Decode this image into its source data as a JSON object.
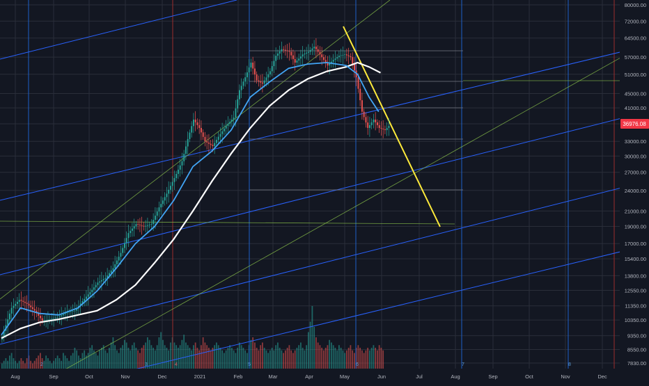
{
  "chart_data": {
    "type": "candlestick",
    "title": "",
    "y_scale": "log",
    "ylim": [
      7600,
      84000
    ],
    "y_ticks": [
      "80000.00",
      "72000.00",
      "64500.00",
      "57000.00",
      "51000.00",
      "45000.00",
      "41000.00",
      "36976.08",
      "33000.00",
      "30000.00",
      "27000.00",
      "24000.00",
      "21000.00",
      "19000.00",
      "17000.00",
      "15400.00",
      "13800.00",
      "12550.00",
      "11350.00",
      "10350.00",
      "9350.00",
      "8550.00",
      "7830.00"
    ],
    "x_ticks": [
      "Aug",
      "Sep",
      "Oct",
      "Nov",
      "Dec",
      "2021",
      "Feb",
      "Mar",
      "Apr",
      "May",
      "Jun",
      "Jul",
      "Aug",
      "Sep",
      "Oct",
      "Nov",
      "Dec"
    ],
    "current_price": "36976.08",
    "week_markers": [
      "2",
      "3",
      "4",
      "5",
      "6",
      "7",
      "8"
    ],
    "colors": {
      "background": "#131722",
      "up": "#26a69a",
      "down": "#ef5350",
      "grid": "#2a2e39",
      "ma_fast": "#42a5f5",
      "ma_slow": "#ffffff",
      "trend": "#ffeb3b",
      "channel": "#2962ff",
      "fib": "#8bc34a",
      "level": "#787b86",
      "month_line": "#1e5fc8",
      "year_line": "#9b2c2c"
    },
    "price_path": [
      [
        0,
        9300
      ],
      [
        5,
        11200
      ],
      [
        9,
        11800
      ],
      [
        13,
        11500
      ],
      [
        17,
        11000
      ],
      [
        21,
        10300
      ],
      [
        25,
        10400
      ],
      [
        30,
        10600
      ],
      [
        34,
        10900
      ],
      [
        38,
        11000
      ],
      [
        42,
        11700
      ],
      [
        46,
        12400
      ],
      [
        50,
        13200
      ],
      [
        54,
        13600
      ],
      [
        58,
        14500
      ],
      [
        62,
        16000
      ],
      [
        66,
        18200
      ],
      [
        70,
        19300
      ],
      [
        74,
        19000
      ],
      [
        78,
        19300
      ],
      [
        82,
        21500
      ],
      [
        86,
        23500
      ],
      [
        90,
        26000
      ],
      [
        94,
        29000
      ],
      [
        97,
        33500
      ],
      [
        100,
        38000
      ],
      [
        103,
        36000
      ],
      [
        106,
        33000
      ],
      [
        110,
        32000
      ],
      [
        113,
        34000
      ],
      [
        117,
        36500
      ],
      [
        121,
        38500
      ],
      [
        124,
        46000
      ],
      [
        127,
        50000
      ],
      [
        130,
        55000
      ],
      [
        133,
        49000
      ],
      [
        136,
        48000
      ],
      [
        140,
        52000
      ],
      [
        143,
        57500
      ],
      [
        146,
        60000
      ],
      [
        150,
        59000
      ],
      [
        153,
        55000
      ],
      [
        157,
        58000
      ],
      [
        160,
        59000
      ],
      [
        163,
        61000
      ],
      [
        166,
        58000
      ],
      [
        170,
        54000
      ],
      [
        173,
        56000
      ],
      [
        176,
        57500
      ],
      [
        179,
        58000
      ],
      [
        182,
        57000
      ],
      [
        185,
        50000
      ],
      [
        188,
        40000
      ],
      [
        191,
        36000
      ],
      [
        194,
        38000
      ],
      [
        197,
        36000
      ],
      [
        200,
        35500
      ],
      [
        203,
        36976
      ]
    ],
    "ma_fast_path": [
      [
        0,
        9400
      ],
      [
        10,
        11200
      ],
      [
        20,
        10800
      ],
      [
        30,
        10700
      ],
      [
        40,
        11200
      ],
      [
        50,
        12500
      ],
      [
        60,
        14500
      ],
      [
        70,
        17000
      ],
      [
        80,
        19000
      ],
      [
        90,
        22500
      ],
      [
        100,
        28000
      ],
      [
        110,
        31000
      ],
      [
        120,
        35500
      ],
      [
        130,
        44000
      ],
      [
        140,
        48500
      ],
      [
        150,
        53000
      ],
      [
        160,
        54500
      ],
      [
        170,
        55000
      ],
      [
        180,
        54000
      ],
      [
        186,
        51000
      ],
      [
        192,
        44000
      ],
      [
        197,
        40000
      ]
    ],
    "ma_slow_path": [
      [
        0,
        9200
      ],
      [
        10,
        9800
      ],
      [
        20,
        10200
      ],
      [
        30,
        10400
      ],
      [
        40,
        10700
      ],
      [
        50,
        11000
      ],
      [
        60,
        11800
      ],
      [
        70,
        13000
      ],
      [
        80,
        15000
      ],
      [
        90,
        17500
      ],
      [
        100,
        21000
      ],
      [
        110,
        25500
      ],
      [
        120,
        30500
      ],
      [
        130,
        36000
      ],
      [
        140,
        41500
      ],
      [
        150,
        46000
      ],
      [
        160,
        49500
      ],
      [
        170,
        52000
      ],
      [
        180,
        53500
      ],
      [
        186,
        55000
      ],
      [
        192,
        53500
      ],
      [
        198,
        51500
      ]
    ],
    "volume": [
      2,
      3,
      4,
      3,
      5,
      6,
      4,
      3,
      2,
      3,
      4,
      3,
      2,
      4,
      5,
      3,
      2,
      3,
      4,
      5,
      6,
      4,
      3,
      5,
      4,
      3,
      2,
      3,
      4,
      5,
      4,
      3,
      6,
      5,
      4,
      3,
      5,
      6,
      8,
      7,
      5,
      4,
      6,
      7,
      5,
      6,
      8,
      9,
      7,
      6,
      5,
      7,
      8,
      9,
      7,
      6,
      8,
      10,
      12,
      9,
      7,
      6,
      8,
      9,
      11,
      10,
      8,
      7,
      9,
      10,
      8,
      7,
      6,
      8,
      9,
      10,
      12,
      11,
      9,
      8,
      7,
      9,
      12,
      14,
      11,
      9,
      8,
      7,
      10,
      12,
      10,
      9,
      8,
      9,
      11,
      13,
      10,
      9,
      8,
      7,
      9,
      10,
      8,
      7,
      9,
      12,
      10,
      9,
      8,
      7,
      8,
      9,
      10,
      9,
      8,
      7,
      6,
      7,
      8,
      9,
      8,
      7,
      6,
      8,
      10,
      9,
      8,
      7,
      6,
      9,
      11,
      12,
      10,
      8,
      7,
      9,
      10,
      8,
      7,
      6,
      7,
      8,
      7,
      9,
      10,
      8,
      7,
      6,
      7,
      8,
      9,
      7,
      6,
      7,
      8,
      9,
      10,
      8,
      7,
      9,
      14,
      18,
      24,
      16,
      12,
      10,
      9,
      8,
      7,
      8,
      9,
      11,
      10,
      9,
      8,
      7,
      9,
      8,
      7,
      6,
      7,
      8,
      9,
      7,
      6,
      8,
      9,
      8,
      7,
      6,
      7,
      8,
      7,
      8,
      9,
      8,
      7,
      9,
      8,
      7
    ]
  }
}
